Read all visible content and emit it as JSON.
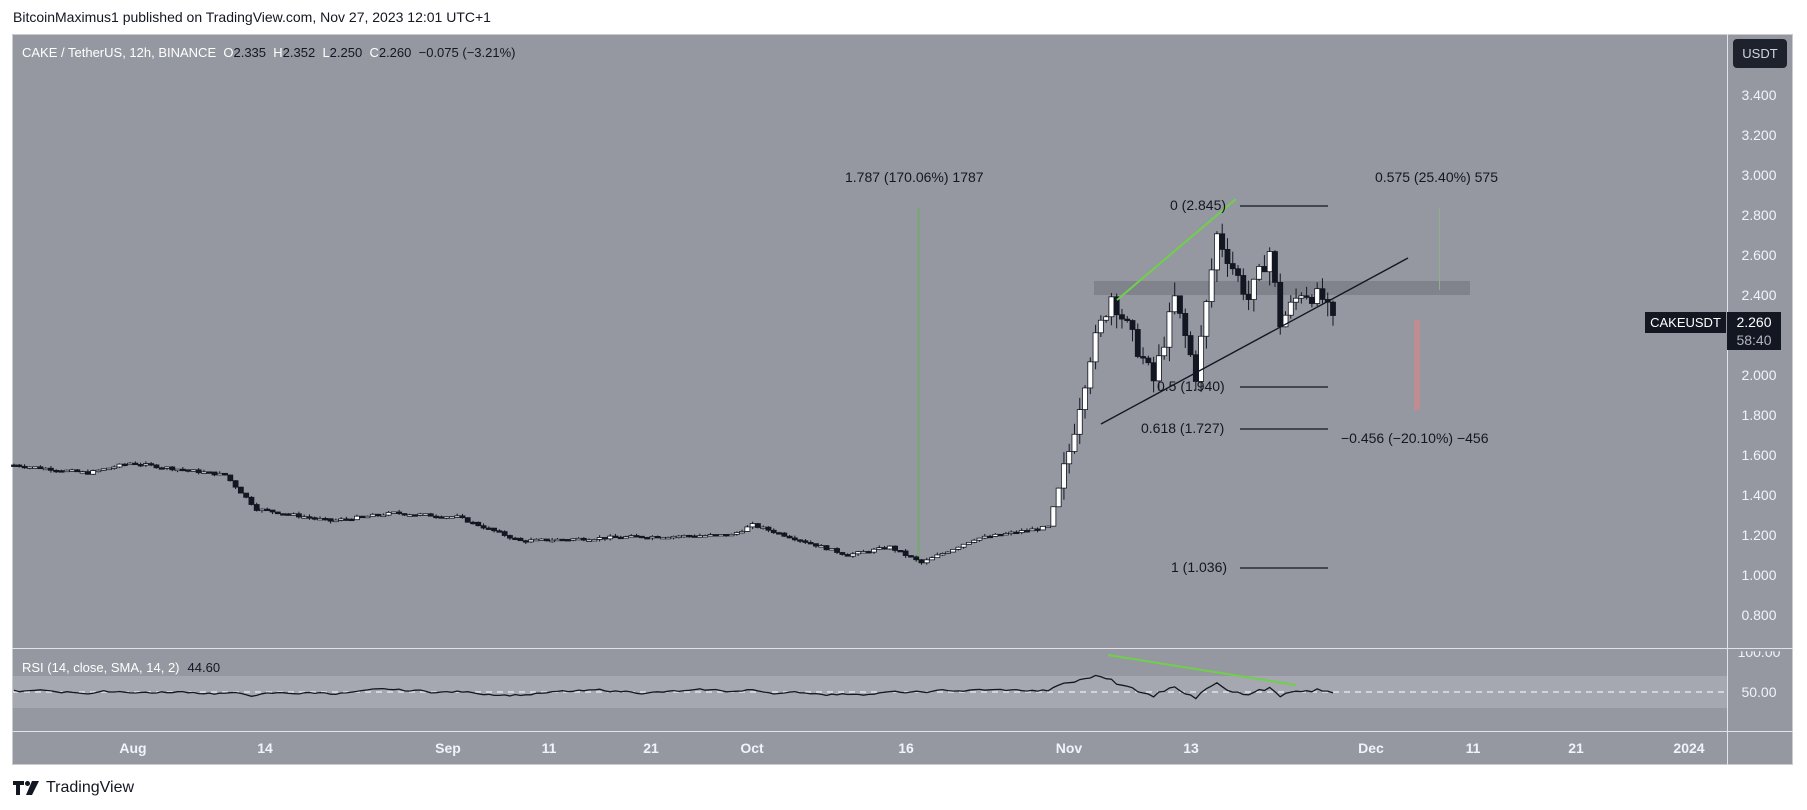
{
  "attribution": "BitcoinMaximus1 published on TradingView.com, Nov 27, 2023 12:01 UTC+1",
  "legend": {
    "symbol": "CAKE / TetherUS, 12h, BINANCE",
    "o_label": "O",
    "o": "2.335",
    "h_label": "H",
    "h": "2.352",
    "l_label": "L",
    "l": "2.250",
    "c_label": "C",
    "c": "2.260",
    "change": "−0.075 (−3.21%)"
  },
  "currency_button": "USDT",
  "price_axis": {
    "ticks": [
      "3.400",
      "3.200",
      "3.000",
      "2.800",
      "2.600",
      "2.400",
      "2.000",
      "1.800",
      "1.600",
      "1.400",
      "1.200",
      "1.000",
      "0.800"
    ]
  },
  "symbol_tag": "CAKEUSDT",
  "last_price": "2.260",
  "countdown": "58:40",
  "time_axis": {
    "ticks": [
      "Aug",
      "14",
      "Sep",
      "11",
      "21",
      "Oct",
      "16",
      "Nov",
      "13",
      "Dec",
      "11",
      "21",
      "2024"
    ]
  },
  "rsi": {
    "label": "RSI (14, close, SMA, 14, 2)",
    "value": "44.60",
    "ticks": [
      "100.00",
      "50.00"
    ]
  },
  "annotations": {
    "measure_up_left": "1.787 (170.06%) 1787",
    "measure_up_right": "0.575 (25.40%) 575",
    "measure_down_right": "−0.456 (−20.10%) −456",
    "fib_0": "0 (2.845)",
    "fib_05": "0.5 (1.940)",
    "fib_0618": "0.618 (1.727)",
    "fib_1": "1 (1.036)"
  },
  "logo_text": "TradingView",
  "colors": {
    "background": "#9598a1",
    "candle_up": "#ffffff",
    "candle_down": "#131722",
    "measure_green": "#7fa37f",
    "measure_red": "#c98a8f",
    "divergence_green": "#6fd04a",
    "resistance_band": "#7c7f88"
  },
  "chart_data": {
    "type": "candlestick",
    "title": "CAKE / TetherUS, 12h, BINANCE",
    "xlabel": "",
    "ylabel": "USDT",
    "ylim": [
      0.7,
      3.6
    ],
    "x_ticks": [
      "Aug",
      "14",
      "Sep",
      "11",
      "21",
      "Oct",
      "16",
      "Nov",
      "13",
      "Dec",
      "11",
      "21",
      "2024"
    ],
    "approx_close_path": [
      {
        "date": "2023-07-25",
        "close": 1.55
      },
      {
        "date": "2023-08-01",
        "close": 1.51
      },
      {
        "date": "2023-08-05",
        "close": 1.56
      },
      {
        "date": "2023-08-14",
        "close": 1.5
      },
      {
        "date": "2023-08-17",
        "close": 1.33
      },
      {
        "date": "2023-08-24",
        "close": 1.27
      },
      {
        "date": "2023-08-30",
        "close": 1.31
      },
      {
        "date": "2023-09-05",
        "close": 1.29
      },
      {
        "date": "2023-09-11",
        "close": 1.17
      },
      {
        "date": "2023-09-21",
        "close": 1.19
      },
      {
        "date": "2023-10-01",
        "close": 1.2
      },
      {
        "date": "2023-10-03",
        "close": 1.25
      },
      {
        "date": "2023-10-12",
        "close": 1.1
      },
      {
        "date": "2023-10-16",
        "close": 1.14
      },
      {
        "date": "2023-10-19",
        "close": 1.06
      },
      {
        "date": "2023-10-24",
        "close": 1.18
      },
      {
        "date": "2023-10-31",
        "close": 1.24
      },
      {
        "date": "2023-11-02",
        "close": 1.62
      },
      {
        "date": "2023-11-04",
        "close": 2.1
      },
      {
        "date": "2023-11-06",
        "close": 2.4
      },
      {
        "date": "2023-11-10",
        "close": 1.97
      },
      {
        "date": "2023-11-12",
        "close": 2.38
      },
      {
        "date": "2023-11-14",
        "close": 2.0
      },
      {
        "date": "2023-11-16",
        "close": 2.7
      },
      {
        "date": "2023-11-19",
        "close": 2.38
      },
      {
        "date": "2023-11-21",
        "close": 2.62
      },
      {
        "date": "2023-11-22",
        "close": 2.26
      },
      {
        "date": "2023-11-24",
        "close": 2.42
      },
      {
        "date": "2023-11-26",
        "close": 2.38
      },
      {
        "date": "2023-11-27",
        "close": 2.26
      }
    ],
    "fibonacci_retracement": [
      {
        "level": 0,
        "price": 2.845
      },
      {
        "level": 0.5,
        "price": 1.94
      },
      {
        "level": 0.618,
        "price": 1.727
      },
      {
        "level": 1,
        "price": 1.036
      }
    ],
    "measurements": [
      {
        "label": "1.787 (170.06%) 1787",
        "direction": "up"
      },
      {
        "label": "0.575 (25.40%) 575",
        "direction": "up"
      },
      {
        "label": "−0.456 (−20.10%) −456",
        "direction": "down"
      }
    ],
    "resistance_zone": [
      2.4,
      2.47
    ],
    "ascending_support_line": true,
    "indicator": {
      "name": "RSI (14, close, SMA, 14, 2)",
      "last_value": 44.6,
      "bands": [
        30,
        50,
        70
      ],
      "ylim": [
        0,
        100
      ],
      "bearish_divergence": true
    }
  }
}
